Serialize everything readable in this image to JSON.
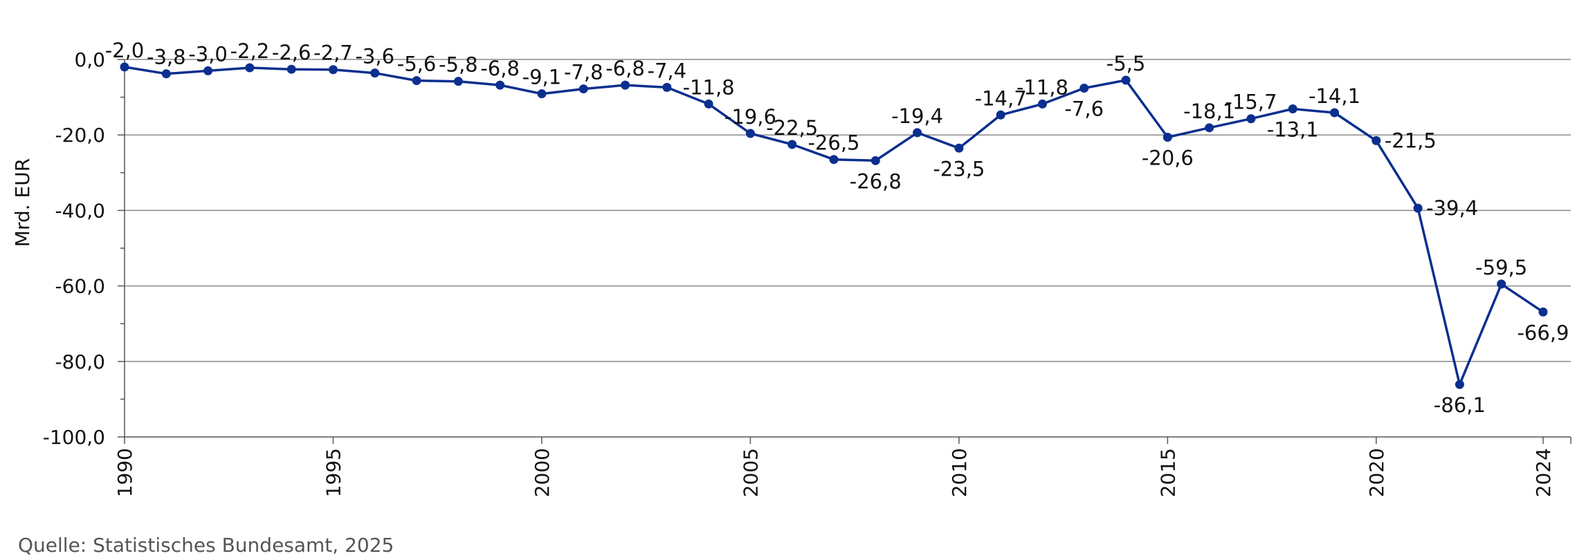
{
  "chart_data": {
    "type": "line",
    "title": "",
    "xlabel": "",
    "ylabel": "Mrd. EUR",
    "ylim": [
      -100,
      0
    ],
    "yticks": [
      "0,0",
      "-20,0",
      "-40,0",
      "-60,0",
      "-80,0",
      "-100,0"
    ],
    "xticks": [
      "1990",
      "1995",
      "2000",
      "2005",
      "2010",
      "2015",
      "2020",
      "2024"
    ],
    "grid": true,
    "color": "#0b2f8f",
    "x": [
      1990,
      1991,
      1992,
      1993,
      1994,
      1995,
      1996,
      1997,
      1998,
      1999,
      2000,
      2001,
      2002,
      2003,
      2004,
      2005,
      2006,
      2007,
      2008,
      2009,
      2010,
      2011,
      2012,
      2013,
      2014,
      2015,
      2016,
      2017,
      2018,
      2019,
      2020,
      2021,
      2022,
      2023,
      2024
    ],
    "values": [
      -2.0,
      -3.8,
      -3.0,
      -2.2,
      -2.6,
      -2.7,
      -3.6,
      -5.6,
      -5.8,
      -6.8,
      -9.1,
      -7.8,
      -6.8,
      -7.4,
      -11.8,
      -19.6,
      -22.5,
      -26.5,
      -26.8,
      -19.4,
      -23.5,
      -14.7,
      -11.8,
      -7.6,
      -5.5,
      -20.6,
      -18.1,
      -15.7,
      -13.1,
      -14.1,
      -21.5,
      -39.4,
      -86.1,
      -59.5,
      -66.9
    ],
    "labels": [
      "-2,0",
      "-3,8",
      "-3,0",
      "-2,2",
      "-2,6",
      "-2,7",
      "-3,6",
      "-5,6",
      "-5,8",
      "-6,8",
      "-9,1",
      "-7,8",
      "-6,8",
      "-7,4",
      "-11,8",
      "-19,6",
      "-22,5",
      "-26,5",
      "-26,8",
      "-19,4",
      "-23,5",
      "-14,7",
      "-11,8",
      "-7,6",
      "-5,5",
      "-20,6",
      "-18,1",
      "-15,7",
      "-13,1",
      "-14,1",
      "-21,5",
      "-39,4",
      "-86,1",
      "-59,5",
      "-66,9"
    ]
  },
  "source": "Quelle: Statistisches Bundesamt, 2025"
}
